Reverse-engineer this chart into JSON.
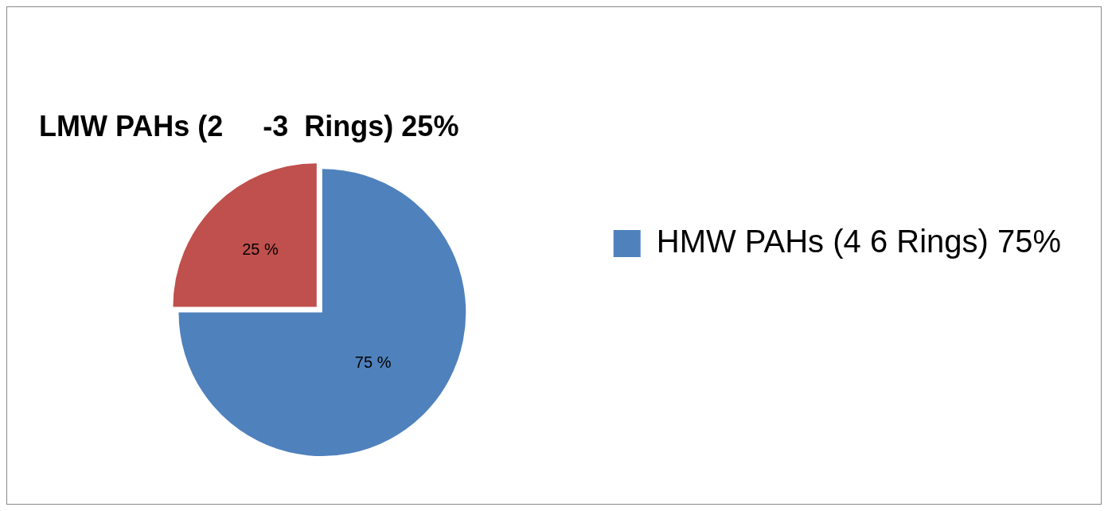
{
  "chart_data": {
    "type": "pie",
    "title": "LMW PAHs (2     -3  Rings) 25%",
    "categories": [
      "HMW PAHs (4 6 Rings) 75%",
      null
    ],
    "values": [
      75,
      25
    ],
    "colors": [
      "#4f81bd",
      "#c0504d"
    ],
    "value_labels": [
      "75 %",
      "25 %"
    ],
    "legend": "right"
  }
}
